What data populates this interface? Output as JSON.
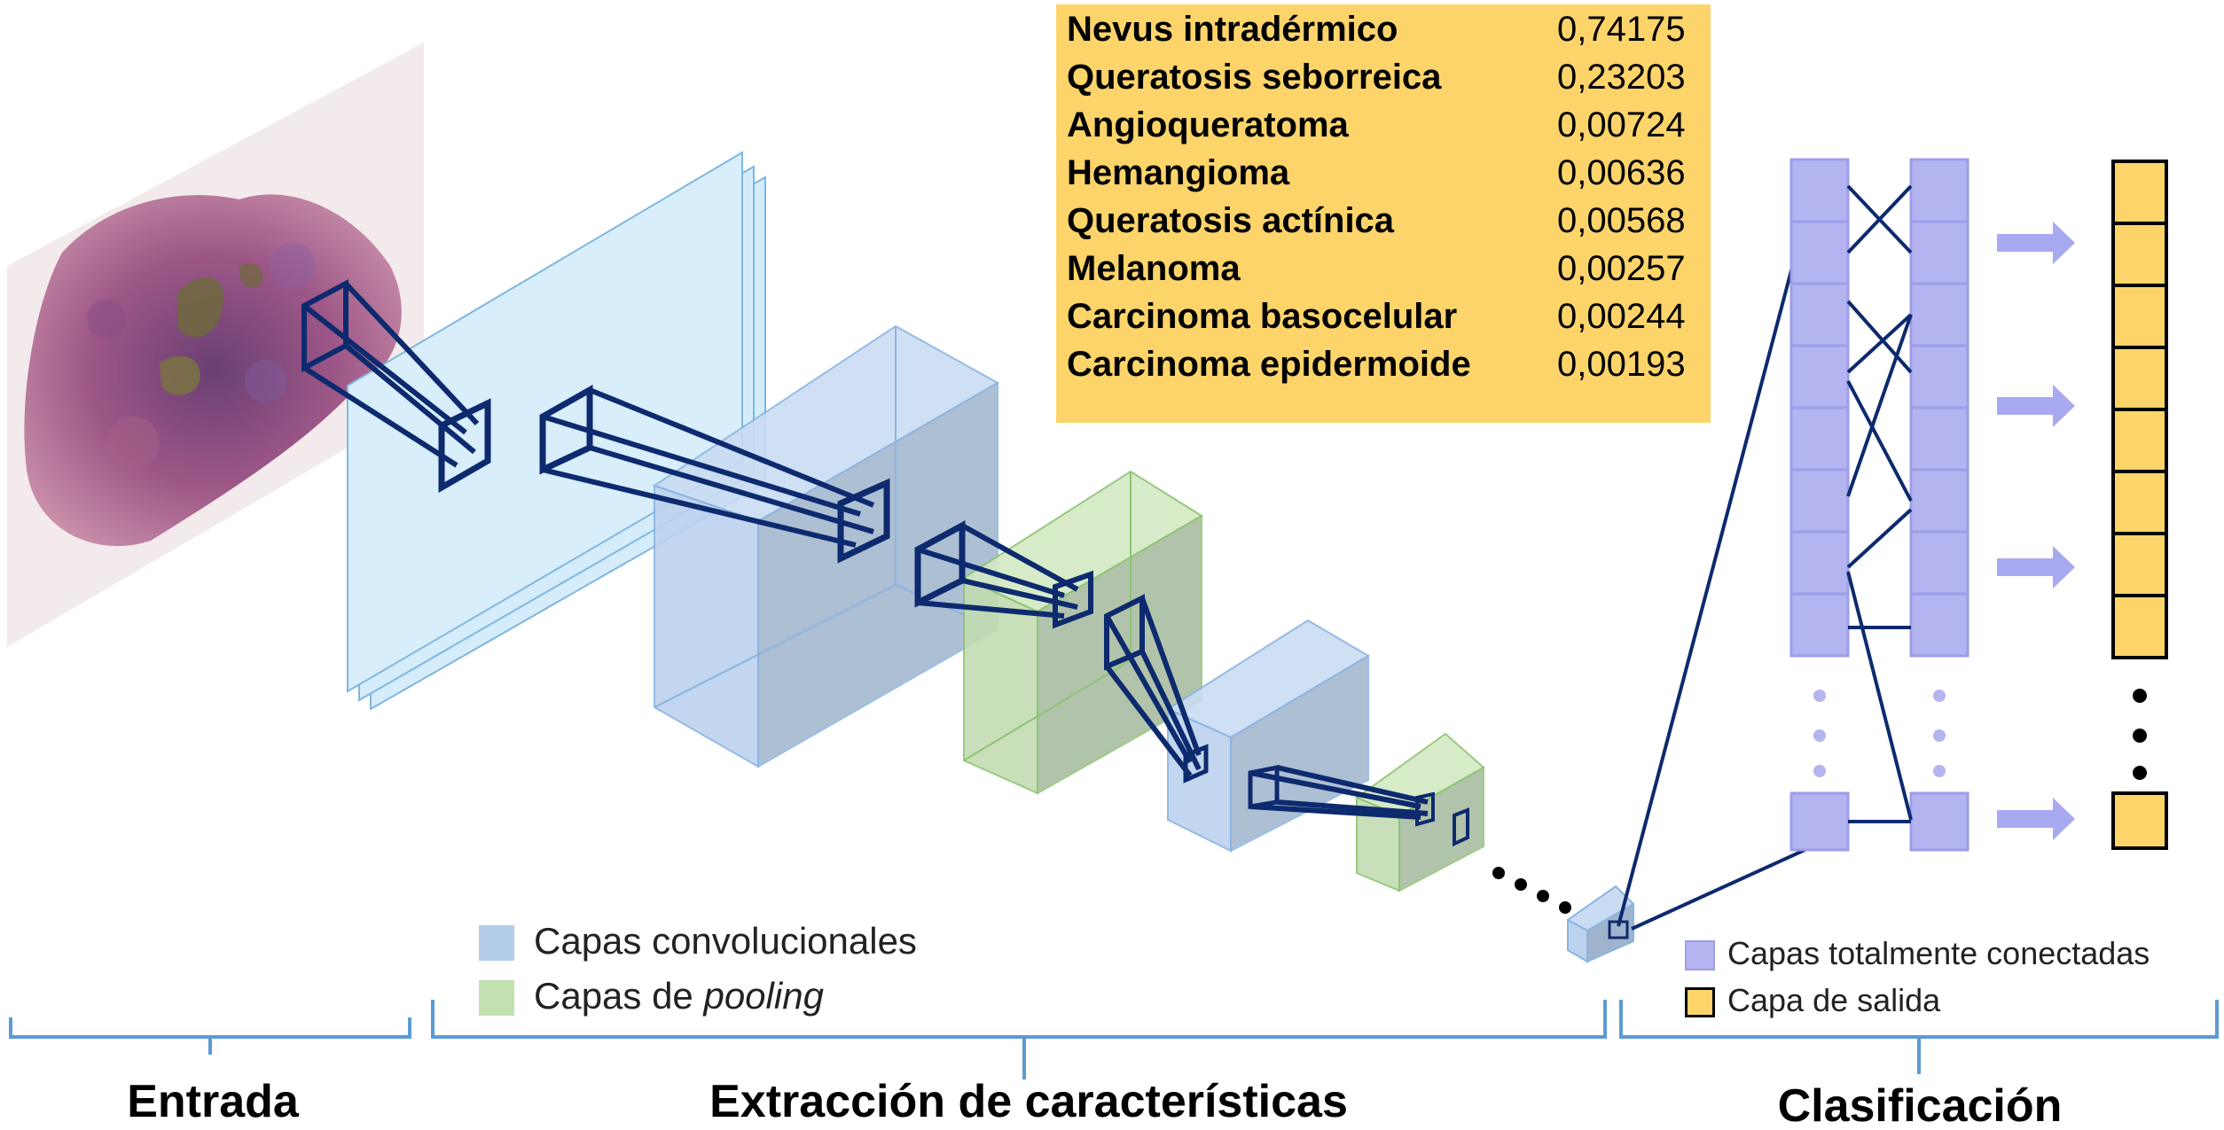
{
  "probabilities": [
    {
      "label": "Nevus intradérmico",
      "value": "0,74175"
    },
    {
      "label": "Queratosis seborreica",
      "value": "0,23203"
    },
    {
      "label": "Angioqueratoma",
      "value": "0,00724"
    },
    {
      "label": "Hemangioma",
      "value": "0,00636"
    },
    {
      "label": "Queratosis actínica",
      "value": "0,00568"
    },
    {
      "label": "Melanoma",
      "value": "0,00257"
    },
    {
      "label": "Carcinoma basocelular",
      "value": "0,00244"
    },
    {
      "label": "Carcinoma epidermoide",
      "value": "0,00193"
    }
  ],
  "legend_left": {
    "conv_label": "Capas convolucionales",
    "pool_prefix": "Capas de ",
    "pool_italic": "pooling"
  },
  "legend_right": {
    "fc_label": "Capas totalmente conectadas",
    "output_label": "Capa de salida"
  },
  "sections": {
    "input": "Entrada",
    "features": "Extracción de características",
    "classification": "Clasificación"
  },
  "colors": {
    "conv_fill": "#b4cdeb",
    "pool_fill": "#c2e0b0",
    "fc_fill": "#b4b4f0",
    "output_fill": "#fcd46a",
    "connector": "#0d2a6e",
    "bracket": "#5b9bd5"
  }
}
